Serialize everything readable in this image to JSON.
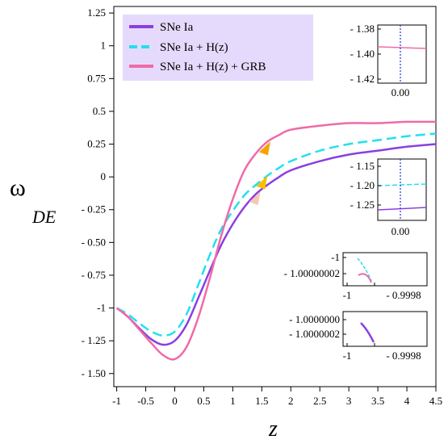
{
  "chart_data": {
    "type": "line",
    "xlabel": "z",
    "ylabel_main": "ω",
    "ylabel_sub": "DE",
    "xlim": [
      -1.05,
      4.5
    ],
    "ylim": [
      -1.6,
      1.3
    ],
    "x_ticks": [
      -1,
      -0.5,
      0,
      0.5,
      1,
      1.5,
      2,
      2.5,
      3,
      3.5,
      4,
      4.5
    ],
    "x_tick_labels": [
      "-1",
      "-0.5",
      "0",
      "0.5",
      "1",
      "1.5",
      "2",
      "2.5",
      "3",
      "3.5",
      "4",
      "4.5"
    ],
    "y_ticks": [
      1.25,
      1,
      0.75,
      0.5,
      0.25,
      0,
      -0.25,
      -0.5,
      -0.75,
      -1,
      -1.25,
      -1.5
    ],
    "y_tick_labels": [
      "1.25",
      "1",
      "0.75",
      "0.5",
      "0.25",
      "0",
      "- 0.25",
      "- 0.50",
      "- 0.75",
      "-1",
      "- 1.25",
      "- 1.50"
    ],
    "legend_position": "top-left",
    "series": [
      {
        "name": "SNe Ia",
        "color": "#8a3fe0",
        "dash": "solid",
        "x": [
          -1,
          -0.8,
          -0.6,
          -0.4,
          -0.2,
          0,
          0.2,
          0.4,
          0.6,
          0.8,
          1,
          1.2,
          1.4,
          1.6,
          1.8,
          2,
          2.5,
          3,
          3.5,
          4,
          4.5
        ],
        "y": [
          -1,
          -1.07,
          -1.16,
          -1.24,
          -1.28,
          -1.25,
          -1.13,
          -0.93,
          -0.72,
          -0.52,
          -0.36,
          -0.23,
          -0.13,
          -0.06,
          0.0,
          0.05,
          0.12,
          0.17,
          0.2,
          0.23,
          0.25
        ]
      },
      {
        "name": "SNe Ia + H(z)",
        "color": "#22e0f0",
        "dash": "dashed",
        "x": [
          -1,
          -0.8,
          -0.6,
          -0.4,
          -0.2,
          0,
          0.2,
          0.4,
          0.6,
          0.8,
          1,
          1.2,
          1.4,
          1.6,
          1.8,
          2,
          2.5,
          3,
          3.5,
          4,
          4.5
        ],
        "y": [
          -1,
          -1.05,
          -1.12,
          -1.18,
          -1.21,
          -1.18,
          -1.05,
          -0.83,
          -0.6,
          -0.4,
          -0.26,
          -0.14,
          -0.06,
          0.01,
          0.07,
          0.12,
          0.2,
          0.25,
          0.28,
          0.31,
          0.33
        ]
      },
      {
        "name": "SNe Ia + H(z) + GRB",
        "color": "#f06aa8",
        "dash": "solid",
        "x": [
          -1,
          -0.8,
          -0.6,
          -0.4,
          -0.2,
          0,
          0.2,
          0.4,
          0.6,
          0.8,
          1,
          1.2,
          1.4,
          1.6,
          1.8,
          2,
          2.5,
          3,
          3.5,
          4,
          4.5
        ],
        "y": [
          -1,
          -1.07,
          -1.17,
          -1.27,
          -1.36,
          -1.39,
          -1.3,
          -1.08,
          -0.78,
          -0.45,
          -0.17,
          0.05,
          0.18,
          0.27,
          0.32,
          0.36,
          0.39,
          0.41,
          0.41,
          0.42,
          0.42
        ]
      }
    ],
    "markers": [
      {
        "x": 1.55,
        "y": 0.22,
        "color": "#f6a300"
      },
      {
        "x": 1.5,
        "y": -0.04,
        "color": "#f6c000"
      },
      {
        "x": 1.38,
        "y": -0.16,
        "color": "#f6c8b4"
      }
    ],
    "insets": [
      {
        "x_tick_labels": [
          "0.00"
        ],
        "y_tick_labels": [
          "- 1.38",
          "- 1.40",
          "- 1.42"
        ],
        "lines": [
          {
            "color": "#f06aa8"
          }
        ],
        "vline_color": "#2030e0"
      },
      {
        "x_tick_labels": [
          "0.00"
        ],
        "y_tick_labels": [
          "- 1.15",
          "- 1.20",
          "- 1.25"
        ],
        "lines": [
          {
            "color": "#22e0f0"
          },
          {
            "color": "#8a3fe0"
          }
        ],
        "vline_color": "#2030e0"
      },
      {
        "x_tick_labels": [
          "-1",
          "- 0.9998"
        ],
        "y_tick_labels": [
          "-1",
          "- 1.00000002"
        ],
        "lines": [
          {
            "color": "#22e0f0"
          },
          {
            "color": "#f06aa8"
          }
        ]
      },
      {
        "x_tick_labels": [
          "-1",
          "- 0.9998"
        ],
        "y_tick_labels": [
          "- 1.0000000",
          "- 1.0000002"
        ],
        "lines": [
          {
            "color": "#8a3fe0"
          }
        ]
      }
    ]
  }
}
